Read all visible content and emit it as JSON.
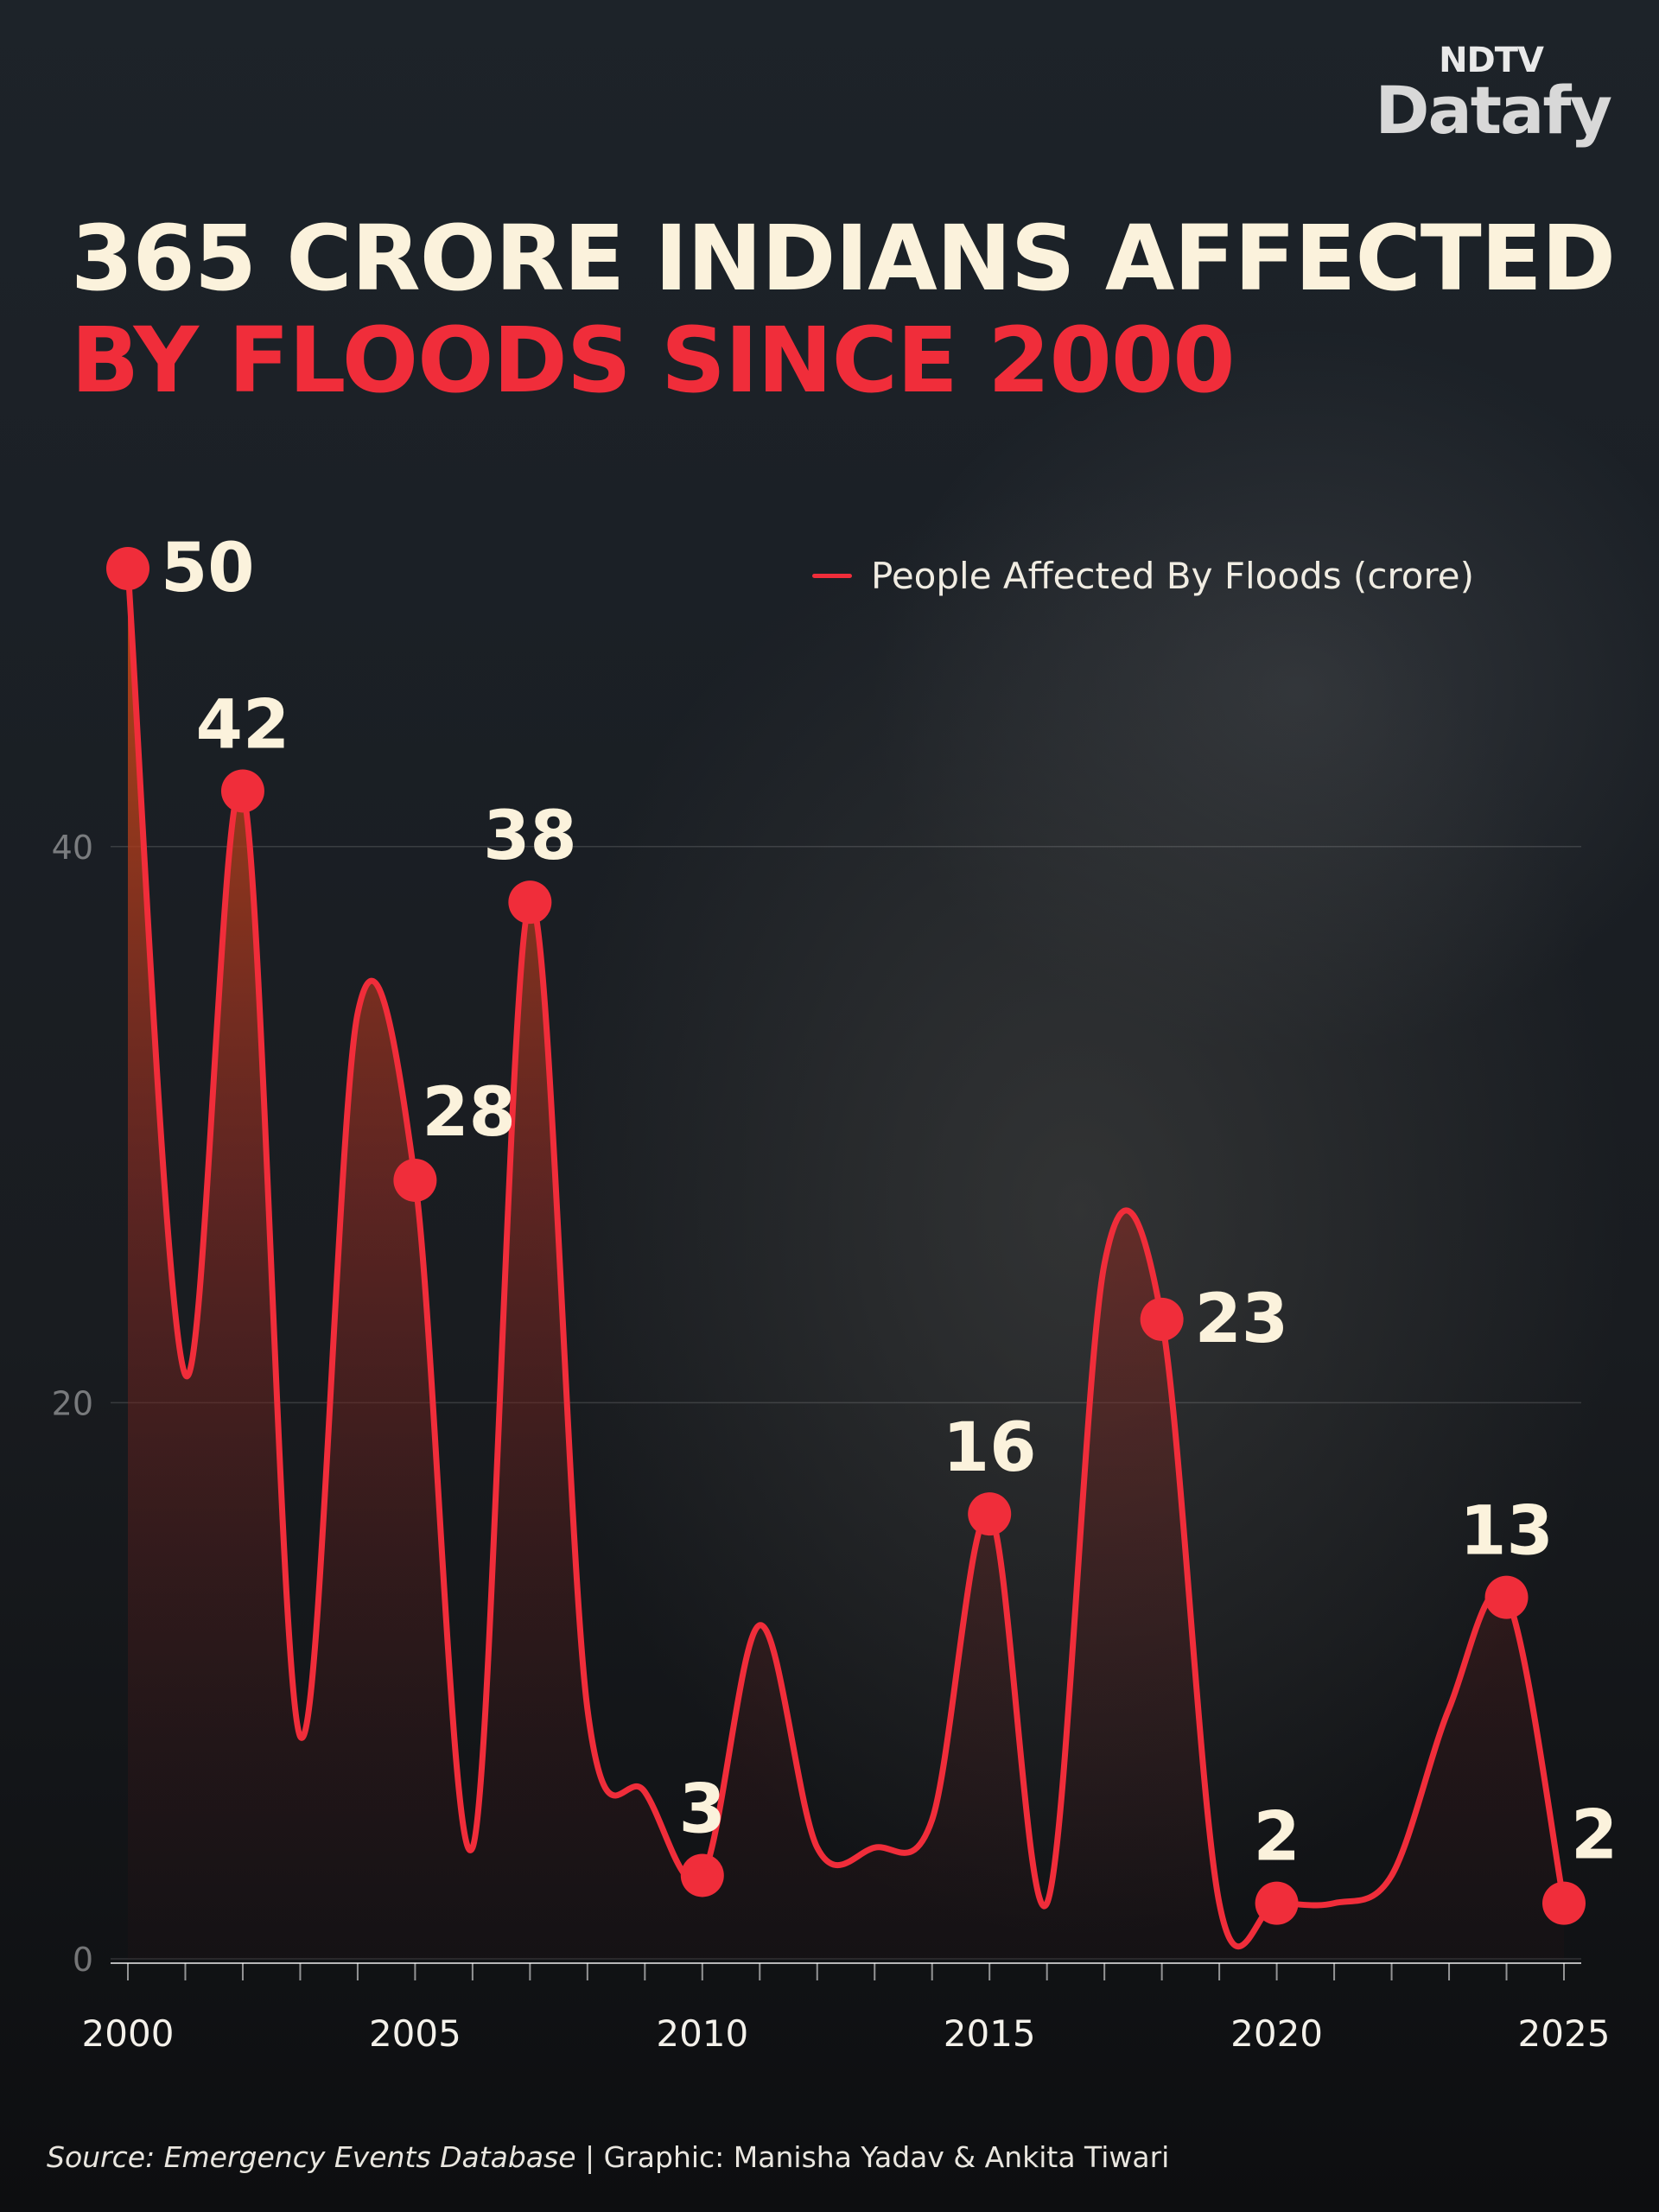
{
  "logo": {
    "top": "NDTV",
    "bottom": "Datafy"
  },
  "title": {
    "line1": "365 CRORE INDIANS AFFECTED",
    "line2": "BY FLOODS SINCE 2000"
  },
  "source": {
    "label": "Source: Emergency Events Database",
    "credit": " | Graphic: Manisha Yadav & Ankita Tiwari"
  },
  "colors": {
    "line": "#f02d3a",
    "title_primary": "#fbf2dc",
    "title_accent": "#f02d3a",
    "label": "#fbf2dc"
  },
  "chart_data": {
    "type": "area",
    "title": "",
    "xlabel": "",
    "ylabel": "",
    "x": [
      2000,
      2001,
      2002,
      2003,
      2004,
      2005,
      2006,
      2007,
      2008,
      2009,
      2010,
      2011,
      2012,
      2013,
      2014,
      2015,
      2016,
      2017,
      2018,
      2019,
      2020,
      2021,
      2022,
      2023,
      2024,
      2025
    ],
    "series": [
      {
        "name": "People Affected By Floods (crore)",
        "values": [
          50,
          21,
          42,
          8,
          34,
          28,
          4,
          38,
          9,
          6,
          3,
          12,
          4,
          4,
          5,
          16,
          2,
          25,
          23,
          2,
          2,
          2,
          3,
          9,
          13,
          2
        ]
      }
    ],
    "labeled_points": [
      {
        "x": 2000,
        "label": "50"
      },
      {
        "x": 2002,
        "label": "42"
      },
      {
        "x": 2005,
        "label": "28"
      },
      {
        "x": 2007,
        "label": "38"
      },
      {
        "x": 2010,
        "label": "3"
      },
      {
        "x": 2015,
        "label": "16"
      },
      {
        "x": 2018,
        "label": "23"
      },
      {
        "x": 2020,
        "label": "2"
      },
      {
        "x": 2024,
        "label": "13"
      },
      {
        "x": 2025,
        "label": "2"
      }
    ],
    "x_ticks": [
      "2000",
      "2005",
      "2010",
      "2015",
      "2020",
      "2025"
    ],
    "y_ticks": [
      "0",
      "20",
      "40"
    ],
    "xlim": [
      2000,
      2025
    ],
    "ylim": [
      0,
      50
    ],
    "grid": true,
    "legend_position": "top-right"
  }
}
